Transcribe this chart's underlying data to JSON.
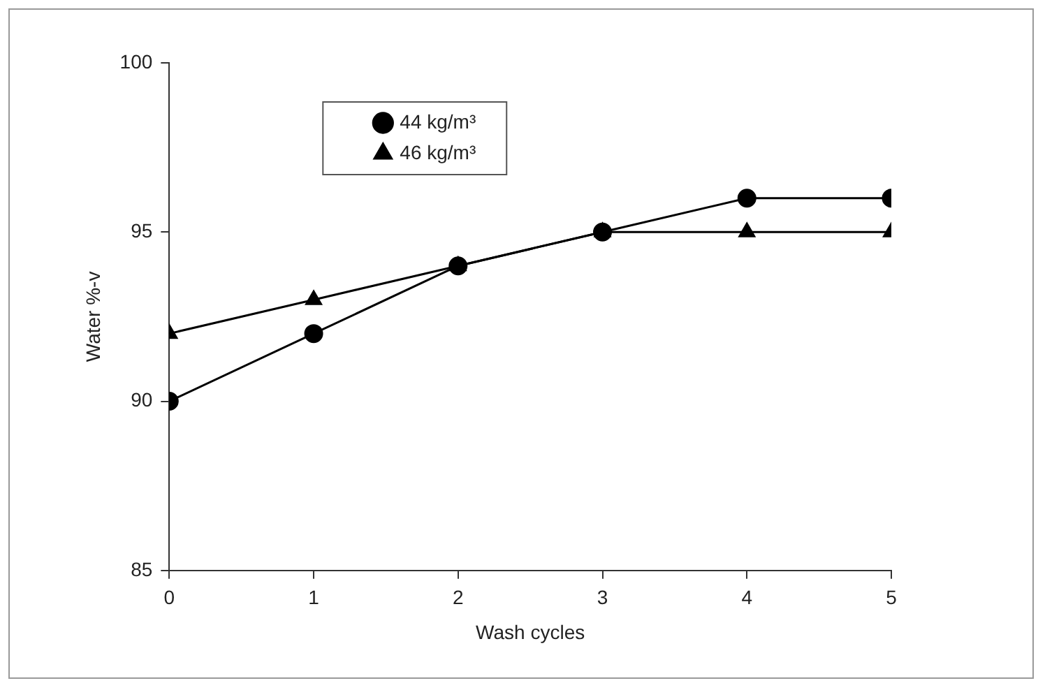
{
  "chart_data": {
    "type": "line",
    "xlabel": "Wash cycles",
    "ylabel": "Water %-v",
    "x": [
      0,
      1,
      2,
      3,
      4,
      5
    ],
    "series": [
      {
        "name": "44 kg/m³",
        "color": "#000000",
        "marker": "circle",
        "values": [
          90,
          92,
          94,
          95,
          96,
          96
        ]
      },
      {
        "name": "46 kg/m³",
        "color": "#000000",
        "marker": "triangle",
        "values": [
          92,
          93,
          94,
          95,
          95,
          95
        ]
      }
    ],
    "xlim": [
      0,
      5
    ],
    "xticks": [
      0,
      1,
      2,
      3,
      4,
      5
    ],
    "ylim": [
      85,
      100
    ],
    "yticks": [
      85,
      90,
      95,
      100
    ],
    "grid": false,
    "legend": "top",
    "line_style": "solid"
  }
}
